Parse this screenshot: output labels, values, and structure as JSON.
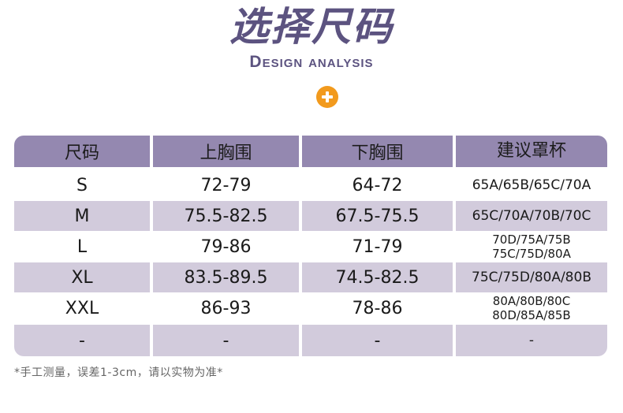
{
  "title": "选择尺码",
  "subtitle": "Design analysis",
  "accent_color": "#5c5380",
  "icon": "plus-circle-icon",
  "table": {
    "headers": [
      "尺码",
      "上胸围",
      "下胸围",
      "建议罩杯"
    ],
    "rows": [
      {
        "size": "S",
        "upper": "72-79",
        "lower": "64-72",
        "cup_line1": "65A/65B/65C/70A",
        "cup_line2": ""
      },
      {
        "size": "M",
        "upper": "75.5-82.5",
        "lower": "67.5-75.5",
        "cup_line1": "65C/70A/70B/70C",
        "cup_line2": ""
      },
      {
        "size": "L",
        "upper": "79-86",
        "lower": "71-79",
        "cup_line1": "70D/75A/75B",
        "cup_line2": "75C/75D/80A"
      },
      {
        "size": "XL",
        "upper": "83.5-89.5",
        "lower": "74.5-82.5",
        "cup_line1": "75C/75D/80A/80B",
        "cup_line2": ""
      },
      {
        "size": "XXL",
        "upper": "86-93",
        "lower": "78-86",
        "cup_line1": "80A/80B/80C",
        "cup_line2": "80D/85A/85B"
      },
      {
        "size": "-",
        "upper": "-",
        "lower": "-",
        "cup_line1": "-",
        "cup_line2": ""
      }
    ]
  },
  "note": "*手工测量，误差1-3cm，请以实物为准*"
}
